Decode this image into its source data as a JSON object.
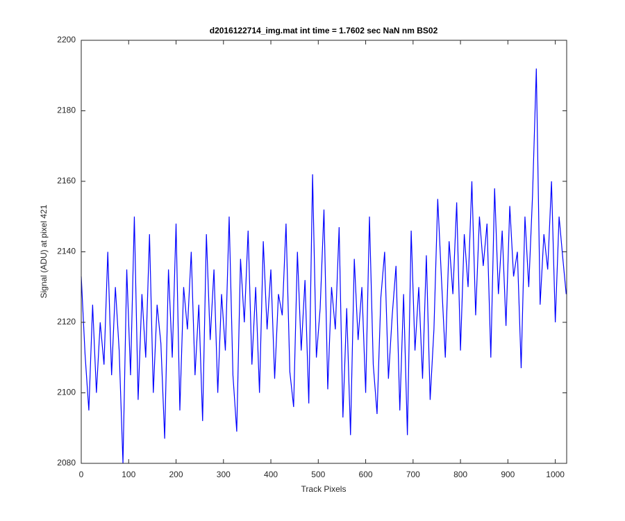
{
  "chart_data": {
    "type": "line",
    "title": "d2016122714_img.mat int time = 1.7602 sec  NaN nm BS02",
    "x_label": "Track Pixels",
    "y_label": "Signal (ADU) at pixel 421",
    "xlim": [
      0,
      1024
    ],
    "ylim": [
      2080,
      2200
    ],
    "xticks": [
      0,
      100,
      200,
      300,
      400,
      500,
      600,
      700,
      800,
      900,
      1000
    ],
    "yticks": [
      2080,
      2100,
      2120,
      2140,
      2160,
      2180,
      2200
    ],
    "grid": false,
    "x": [
      0,
      8,
      16,
      24,
      32,
      40,
      48,
      56,
      64,
      72,
      80,
      88,
      96,
      104,
      112,
      120,
      128,
      136,
      144,
      152,
      160,
      168,
      176,
      184,
      192,
      200,
      208,
      216,
      224,
      232,
      240,
      248,
      256,
      264,
      272,
      280,
      288,
      296,
      304,
      312,
      320,
      328,
      336,
      344,
      352,
      360,
      368,
      376,
      384,
      392,
      400,
      408,
      416,
      424,
      432,
      440,
      448,
      456,
      464,
      472,
      480,
      488,
      496,
      504,
      512,
      520,
      528,
      536,
      544,
      552,
      560,
      568,
      576,
      584,
      592,
      600,
      608,
      616,
      624,
      632,
      640,
      648,
      656,
      664,
      672,
      680,
      688,
      696,
      704,
      712,
      720,
      728,
      736,
      744,
      752,
      760,
      768,
      776,
      784,
      792,
      800,
      808,
      816,
      824,
      832,
      840,
      848,
      856,
      864,
      872,
      880,
      888,
      896,
      904,
      912,
      920,
      928,
      936,
      944,
      952,
      960,
      968,
      976,
      984,
      992,
      1000,
      1008,
      1016,
      1023
    ],
    "series": [
      {
        "color": "#0000ff",
        "values": [
          2133,
          2111,
          2095,
          2125,
          2100,
          2120,
          2108,
          2140,
          2105,
          2130,
          2112,
          2080,
          2135,
          2105,
          2150,
          2098,
          2128,
          2110,
          2145,
          2100,
          2125,
          2114,
          2087,
          2135,
          2110,
          2148,
          2095,
          2130,
          2118,
          2140,
          2105,
          2125,
          2092,
          2145,
          2115,
          2135,
          2100,
          2128,
          2112,
          2150,
          2105,
          2089,
          2138,
          2120,
          2146,
          2108,
          2130,
          2100,
          2143,
          2118,
          2135,
          2104,
          2128,
          2122,
          2148,
          2106,
          2096,
          2140,
          2112,
          2132,
          2097,
          2162,
          2110,
          2124,
          2152,
          2101,
          2130,
          2118,
          2147,
          2093,
          2124,
          2088,
          2138,
          2115,
          2130,
          2100,
          2150,
          2108,
          2094,
          2127,
          2140,
          2104,
          2122,
          2136,
          2095,
          2128,
          2088,
          2146,
          2112,
          2130,
          2104,
          2139,
          2098,
          2118,
          2155,
          2132,
          2110,
          2143,
          2128,
          2154,
          2112,
          2145,
          2130,
          2160,
          2122,
          2150,
          2136,
          2148,
          2110,
          2158,
          2128,
          2146,
          2119,
          2153,
          2133,
          2140,
          2107,
          2150,
          2130,
          2156,
          2192,
          2125,
          2145,
          2135,
          2160,
          2120,
          2150,
          2138,
          2128
        ]
      }
    ]
  }
}
